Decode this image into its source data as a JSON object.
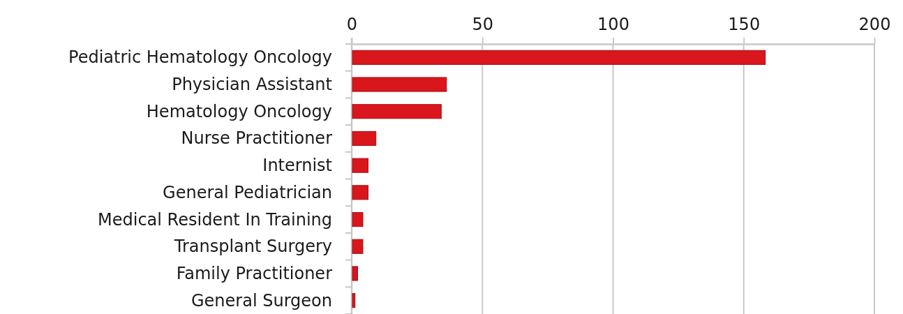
{
  "chart_data": {
    "type": "bar",
    "orientation": "horizontal",
    "categories": [
      "Pediatric Hematology Oncology",
      "Physician Assistant",
      "Hematology Oncology",
      "Nurse Practitioner",
      "Internist",
      "General Pediatrician",
      "Medical Resident In Training",
      "Transplant Surgery",
      "Family Practitioner",
      "General Surgeon"
    ],
    "values": [
      158,
      36,
      34,
      9,
      6,
      6,
      4,
      4,
      2,
      1
    ],
    "color": "#d9161c",
    "xlim": [
      0,
      200
    ],
    "xticks": [
      0,
      50,
      100,
      150,
      200
    ],
    "grid": "x"
  }
}
